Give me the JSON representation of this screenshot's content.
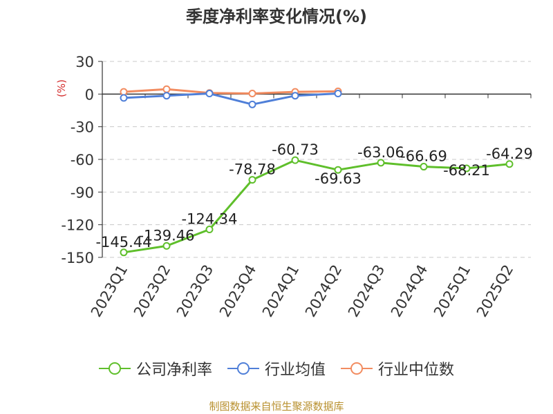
{
  "chart_data": {
    "type": "line",
    "title": "季度净利率变化情况(%)",
    "ylabel": "(%)",
    "categories": [
      "2023Q1",
      "2023Q2",
      "2023Q3",
      "2023Q4",
      "2024Q1",
      "2024Q2",
      "2024Q3",
      "2024Q4",
      "2025Q1",
      "2025Q2"
    ],
    "ylim": [
      -150,
      30
    ],
    "yticks": [
      30,
      0,
      -30,
      -60,
      -90,
      -120,
      -150
    ],
    "grid": true,
    "legend_position": "bottom",
    "series": [
      {
        "name": "公司净利率",
        "color": "#5fbf2b",
        "values": [
          -145.44,
          -139.46,
          -124.34,
          -78.78,
          -60.73,
          -69.63,
          -63.06,
          -66.69,
          -68.21,
          -64.29
        ],
        "labels": [
          "-145.44",
          "-139.46",
          "-124.34",
          "-78.78",
          "-60.73",
          "-69.63",
          "-63.06",
          "-66.69",
          "-68.21",
          "-64.29"
        ],
        "show_labels": true
      },
      {
        "name": "行业均值",
        "color": "#4f7fd8",
        "values": [
          -3.5,
          -1.5,
          0.5,
          -9.5,
          -1.5,
          0.5,
          null,
          null,
          null,
          null
        ],
        "show_labels": false
      },
      {
        "name": "行业中位数",
        "color": "#f28c60",
        "values": [
          2.0,
          4.5,
          1.0,
          0.5,
          2.0,
          2.5,
          null,
          null,
          null,
          null
        ],
        "show_labels": false
      }
    ]
  },
  "source_note": "制图数据来自恒生聚源数据库"
}
